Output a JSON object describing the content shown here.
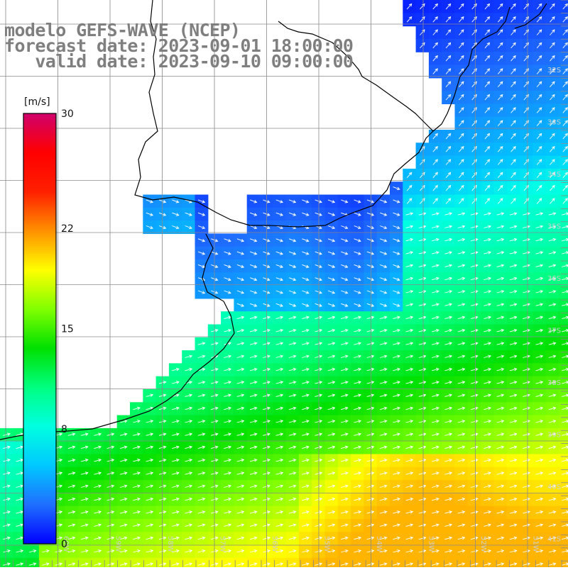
{
  "title": {
    "line1": "modelo GEFS-WAVE (NCEP)",
    "line2": "forecast date: 2023-09-01 18:00:00",
    "line3": "   valid date: 2023-09-10 09:00:00"
  },
  "colorbar": {
    "unit": "[m/s]",
    "min": 0,
    "max": 30,
    "ticks": [
      "30",
      "22",
      "15",
      "8",
      "0"
    ],
    "tick_values": [
      30,
      22,
      15,
      8,
      0
    ],
    "colors": [
      "#0000ff",
      "#1f6fff",
      "#00c8ff",
      "#00ffe0",
      "#00ff80",
      "#00e000",
      "#80ff00",
      "#ffff00",
      "#ff9000",
      "#ff2000",
      "#ff0000",
      "#d0006c"
    ]
  },
  "map": {
    "lat_labels": [
      "32S",
      "33S",
      "34S",
      "35S",
      "36S",
      "37S",
      "38S",
      "39S",
      "40S",
      "41S"
    ],
    "lon_labels": [
      "60W",
      "59W",
      "58W",
      "57W",
      "56W",
      "55W",
      "54W",
      "53W",
      "52W",
      "51W"
    ],
    "land_color": "#ffffff",
    "grid_color": "#8a8a8a",
    "coast_color": "#000000",
    "arrow_color": "#ffffff"
  }
}
